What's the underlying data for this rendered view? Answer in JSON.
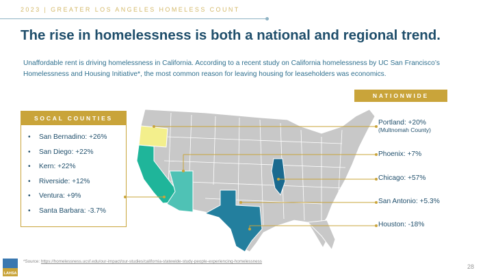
{
  "header": {
    "kicker": "2023 | GREATER LOS ANGELES HOMELESS COUNT",
    "title": "The rise in homelessness is both a national and regional trend.",
    "intro": "Unaffordable rent is driving homelessness in California. According to a recent study on California homelessness by UC San Francisco’s Homelessness and Housing Initiative*, the most common reason for leaving housing for leaseholders was economics."
  },
  "nationwide": {
    "title": "NATIONWIDE",
    "items": [
      {
        "label": "Portland: +20%",
        "sub": "(Multnomah County)"
      },
      {
        "label": "Phoenix: +7%"
      },
      {
        "label": "Chicago: +57%"
      },
      {
        "label": "San Antonio: +5.3%"
      },
      {
        "label": "Houston: -18%"
      }
    ]
  },
  "socal": {
    "title": "SOCAL COUNTIES",
    "items": [
      "San Bernadino: +26%",
      "San Diego: +22%",
      "Kern: +22%",
      "Riverside: +12%",
      "Ventura: +9%",
      "Santa Barbara: -3.7%"
    ]
  },
  "colors": {
    "gold": "#c9a43a",
    "navy": "#1f4e6b",
    "oregon": "#f3ef8c",
    "california": "#1fb59a",
    "arizona": "#4fc2b5",
    "texas": "#237f9e",
    "illinois": "#1a6a8f",
    "gray": "#c8c8c8"
  },
  "footer": {
    "source_prefix": "*Source: ",
    "source_url": "https://homelessness.ucsf.edu/our-impact/our-studies/california-statewide-study-people-experiencing-homelessness",
    "page": "28",
    "logo_text": "LAHSA"
  }
}
